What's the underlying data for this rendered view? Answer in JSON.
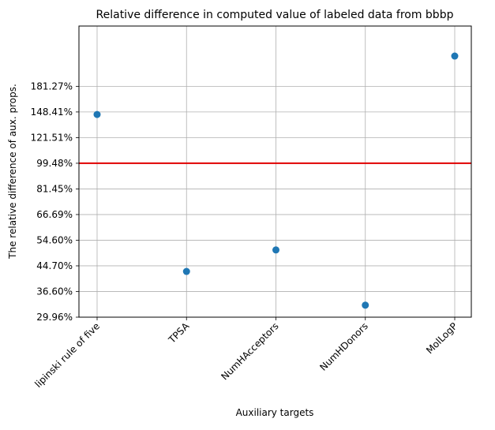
{
  "chart_data": {
    "type": "scatter",
    "title": "Relative difference in computed value of labeled data from bbbp",
    "xlabel": "Auxiliary targets",
    "ylabel": "The relative difference of aux. props.",
    "categories": [
      "lipinski rule of five",
      "TPSA",
      "NumHAcceptors",
      "NumHDonors",
      "MolLogP"
    ],
    "y_scale": "log",
    "ylim": [
      29.96,
      290.0
    ],
    "yticks": [
      29.96,
      36.6,
      44.7,
      54.6,
      66.69,
      81.45,
      99.48,
      121.51,
      148.41,
      181.27
    ],
    "ytick_labels": [
      "29.96%",
      "36.60%",
      "44.70%",
      "54.60%",
      "66.69%",
      "81.45%",
      "99.48%",
      "121.51%",
      "148.41%",
      "181.27%"
    ],
    "values": [
      145.5,
      42.8,
      50.6,
      32.9,
      229.5
    ],
    "reference_line": {
      "value": 99.48,
      "color": "#e00000"
    },
    "point_color": "#1f77b4",
    "grid": true,
    "legend": "none"
  }
}
